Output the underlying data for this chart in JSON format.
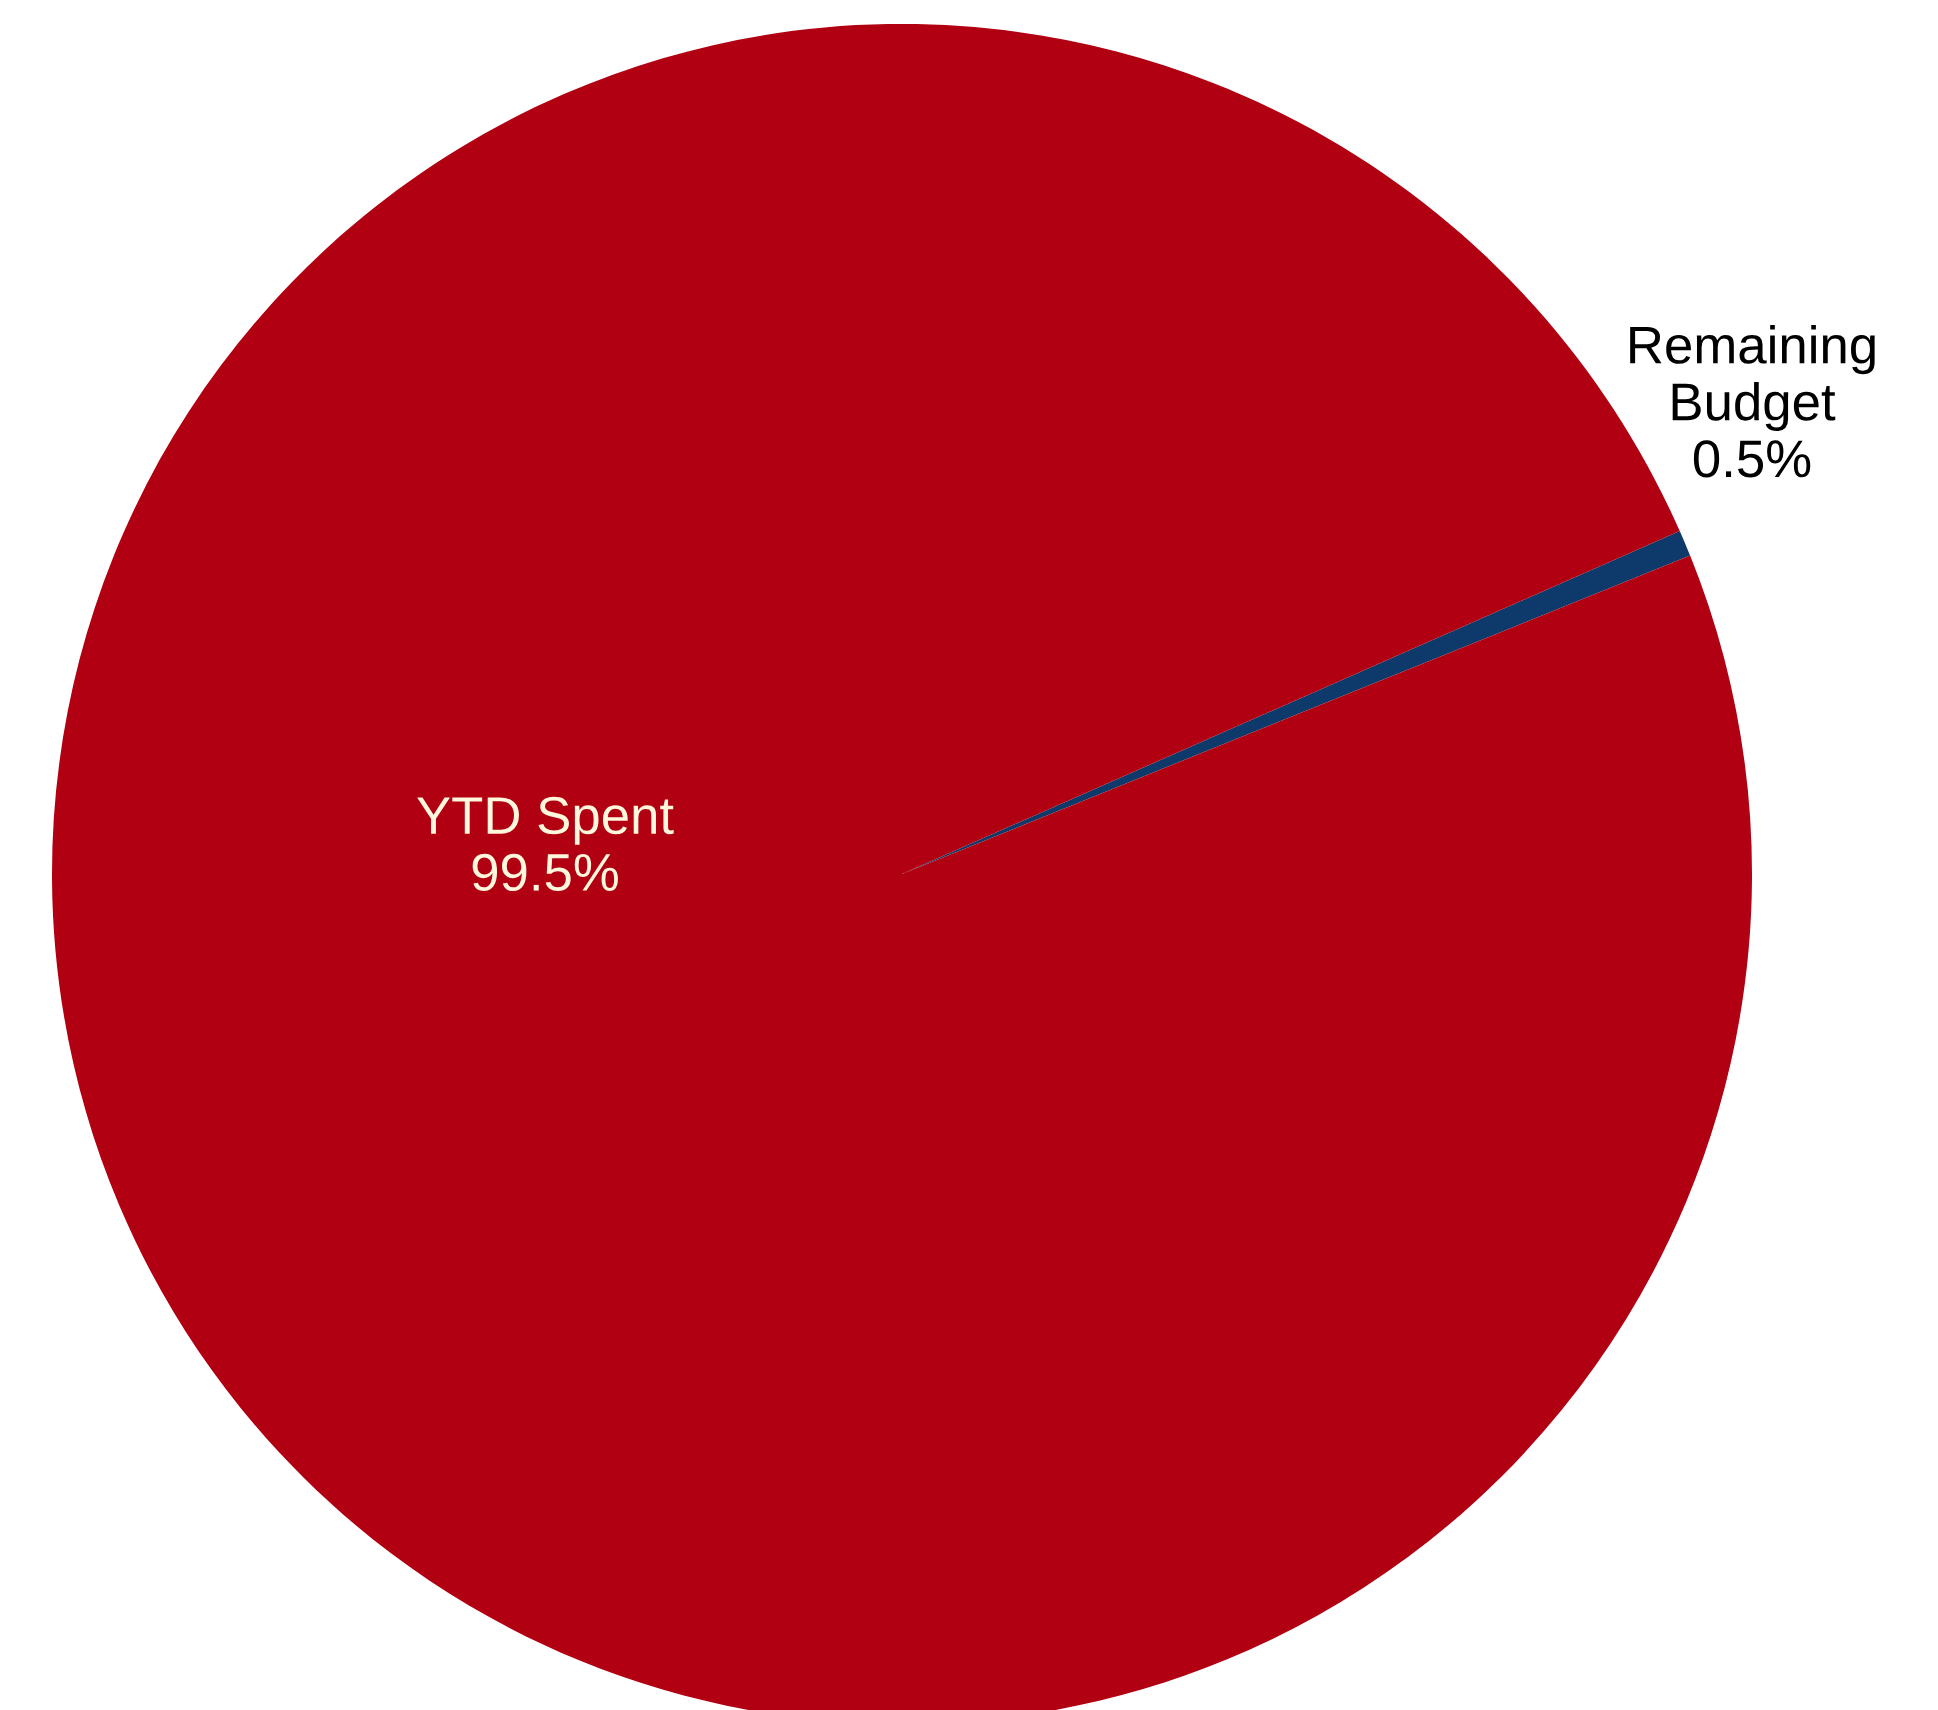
{
  "chart_data": {
    "type": "pie",
    "categories": [
      "Remaining\nBudget",
      "YTD Spent"
    ],
    "values": [
      0.5,
      99.5
    ],
    "colors": [
      "#0d3a6a",
      "#b00012"
    ],
    "value_labels": [
      "0.5%",
      "99.5%"
    ]
  }
}
